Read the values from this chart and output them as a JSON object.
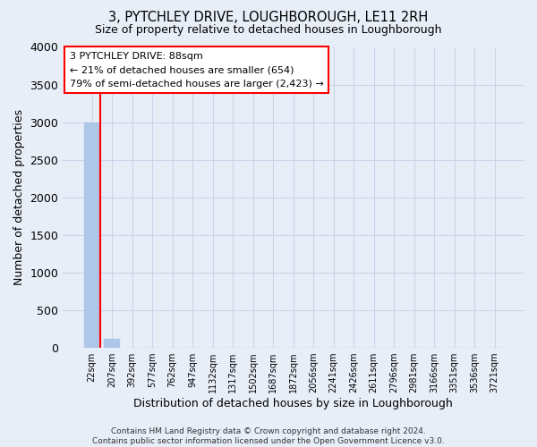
{
  "title": "3, PYTCHLEY DRIVE, LOUGHBOROUGH, LE11 2RH",
  "subtitle": "Size of property relative to detached houses in Loughborough",
  "xlabel": "Distribution of detached houses by size in Loughborough",
  "ylabel": "Number of detached properties",
  "categories": [
    "22sqm",
    "207sqm",
    "392sqm",
    "577sqm",
    "762sqm",
    "947sqm",
    "1132sqm",
    "1317sqm",
    "1502sqm",
    "1687sqm",
    "1872sqm",
    "2056sqm",
    "2241sqm",
    "2426sqm",
    "2611sqm",
    "2796sqm",
    "2981sqm",
    "3166sqm",
    "3351sqm",
    "3536sqm",
    "3721sqm"
  ],
  "bar_values": [
    2990,
    115,
    0,
    0,
    0,
    0,
    0,
    0,
    0,
    0,
    0,
    0,
    0,
    0,
    0,
    0,
    0,
    0,
    0,
    0,
    0
  ],
  "bar_color": "#aec6e8",
  "bar_edge_color": "#aec6e8",
  "grid_color": "#c8d4e8",
  "background_color": "#e8eef8",
  "ylim": [
    0,
    4000
  ],
  "yticks": [
    0,
    500,
    1000,
    1500,
    2000,
    2500,
    3000,
    3500,
    4000
  ],
  "property_label": "3 PYTCHLEY DRIVE: 88sqm",
  "pct_smaller": 21,
  "count_smaller": 654,
  "pct_larger_semi": 79,
  "count_larger_semi": 2423,
  "footer_line1": "Contains HM Land Registry data © Crown copyright and database right 2024.",
  "footer_line2": "Contains public sector information licensed under the Open Government Licence v3.0."
}
